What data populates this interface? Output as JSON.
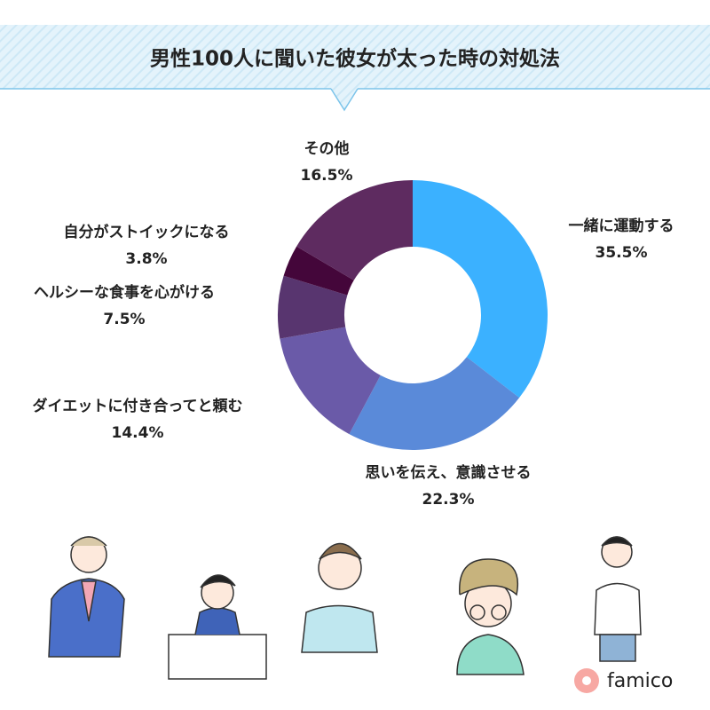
{
  "chart_data": {
    "type": "donut",
    "title": "男性100人に聞いた彼女が太った時の対処法",
    "categories": [
      "一緒に運動する",
      "思いを伝え、意識させる",
      "ダイエットに付き合ってと頼む",
      "ヘルシーな食事を心がける",
      "自分がストイックになる",
      "その他"
    ],
    "values": [
      35.5,
      22.3,
      14.4,
      7.5,
      3.8,
      16.5
    ],
    "value_labels": [
      "35.5%",
      "22.3%",
      "14.4%",
      "7.5%",
      "3.8%",
      "16.5%"
    ],
    "colors": [
      "#3bb1ff",
      "#5a8ad9",
      "#6a5aa8",
      "#58356f",
      "#44063a",
      "#5e2b60"
    ]
  },
  "logo_text": "famico"
}
